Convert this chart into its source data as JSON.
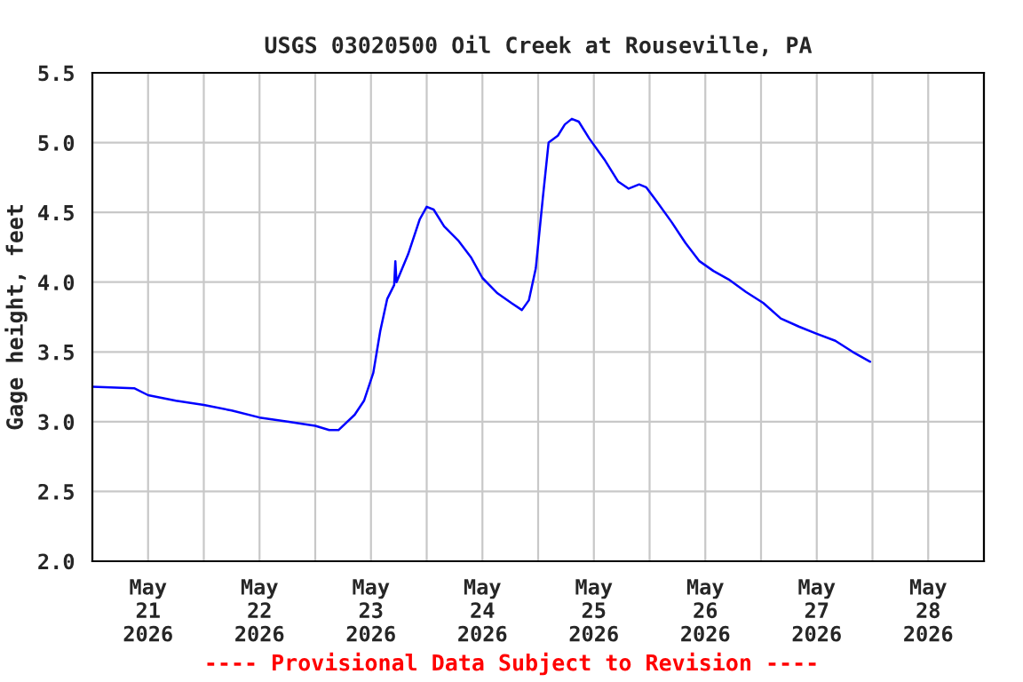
{
  "chart_data": {
    "type": "line",
    "title": "USGS 03020500 Oil Creek at Rouseville, PA",
    "ylabel": "Gage height, feet",
    "series": [
      {
        "color": "#0000ff",
        "x": [
          "2026-05-21T00:00",
          "2026-05-21T09:00",
          "2026-05-21T12:00",
          "2026-05-21T18:00",
          "2026-05-22T00:00",
          "2026-05-22T06:00",
          "2026-05-22T12:00",
          "2026-05-22T18:00",
          "2026-05-23T00:00",
          "2026-05-23T03:00",
          "2026-05-23T05:00",
          "2026-05-23T08:30",
          "2026-05-23T10:30",
          "2026-05-23T12:30",
          "2026-05-23T14:00",
          "2026-05-23T15:30",
          "2026-05-23T17:00",
          "2026-05-23T17:15",
          "2026-05-23T17:30",
          "2026-05-23T20:00",
          "2026-05-23T22:30",
          "2026-05-24T00:00",
          "2026-05-24T01:30",
          "2026-05-24T03:45",
          "2026-05-24T06:45",
          "2026-05-24T09:30",
          "2026-05-24T12:00",
          "2026-05-24T15:15",
          "2026-05-24T18:15",
          "2026-05-24T20:30",
          "2026-05-24T22:00",
          "2026-05-24T23:30",
          "2026-05-25T01:00",
          "2026-05-25T02:15",
          "2026-05-25T04:15",
          "2026-05-25T05:45",
          "2026-05-25T07:15",
          "2026-05-25T08:45",
          "2026-05-25T11:00",
          "2026-05-25T14:15",
          "2026-05-25T17:15",
          "2026-05-25T19:30",
          "2026-05-25T21:45",
          "2026-05-25T23:15",
          "2026-05-26T01:30",
          "2026-05-26T04:45",
          "2026-05-26T07:45",
          "2026-05-26T10:45",
          "2026-05-26T13:45",
          "2026-05-26T17:00",
          "2026-05-26T20:45",
          "2026-05-27T00:30",
          "2026-05-27T04:15",
          "2026-05-27T08:15",
          "2026-05-27T12:00",
          "2026-05-27T16:00",
          "2026-05-27T19:45",
          "2026-05-27T23:30"
        ],
        "values": [
          3.25,
          3.24,
          3.19,
          3.15,
          3.12,
          3.08,
          3.03,
          3.0,
          2.97,
          2.94,
          2.94,
          3.05,
          3.15,
          3.35,
          3.65,
          3.88,
          3.98,
          4.15,
          4.0,
          4.2,
          4.45,
          4.54,
          4.52,
          4.4,
          4.3,
          4.18,
          4.03,
          3.92,
          3.85,
          3.8,
          3.87,
          4.1,
          4.6,
          5.0,
          5.05,
          5.13,
          5.17,
          5.15,
          5.03,
          4.88,
          4.72,
          4.67,
          4.7,
          4.68,
          4.58,
          4.43,
          4.28,
          4.15,
          4.08,
          4.02,
          3.93,
          3.85,
          3.74,
          3.68,
          3.63,
          3.58,
          3.5,
          3.43
        ]
      }
    ],
    "xlim": [
      "2026-05-21T00:00",
      "2026-05-29T00:00"
    ],
    "xticks": [
      {
        "value": "2026-05-21T00:00",
        "label": null
      },
      {
        "value": "2026-05-21T12:00",
        "label": "May\n21\n2026"
      },
      {
        "value": "2026-05-22T00:00",
        "label": null
      },
      {
        "value": "2026-05-22T12:00",
        "label": "May\n22\n2026"
      },
      {
        "value": "2026-05-23T00:00",
        "label": null
      },
      {
        "value": "2026-05-23T12:00",
        "label": "May\n23\n2026"
      },
      {
        "value": "2026-05-24T00:00",
        "label": null
      },
      {
        "value": "2026-05-24T12:00",
        "label": "May\n24\n2026"
      },
      {
        "value": "2026-05-25T00:00",
        "label": null
      },
      {
        "value": "2026-05-25T12:00",
        "label": "May\n25\n2026"
      },
      {
        "value": "2026-05-26T00:00",
        "label": null
      },
      {
        "value": "2026-05-26T12:00",
        "label": "May\n26\n2026"
      },
      {
        "value": "2026-05-27T00:00",
        "label": null
      },
      {
        "value": "2026-05-27T12:00",
        "label": "May\n27\n2026"
      },
      {
        "value": "2026-05-28T00:00",
        "label": null
      },
      {
        "value": "2026-05-28T12:00",
        "label": "May\n28\n2026"
      },
      {
        "value": "2026-05-29T00:00",
        "label": null
      }
    ],
    "ylim": [
      2.0,
      5.5
    ],
    "yticks": [
      {
        "value": 2,
        "label": "2.0"
      },
      {
        "value": 2.5,
        "label": "2.5"
      },
      {
        "value": 3,
        "label": "3.0"
      },
      {
        "value": 3.5,
        "label": "3.5"
      },
      {
        "value": 4,
        "label": "4.0"
      },
      {
        "value": 4.5,
        "label": "4.5"
      },
      {
        "value": 5,
        "label": "5.0"
      },
      {
        "value": 5.5,
        "label": "5.5"
      }
    ],
    "grid": true,
    "legend": false,
    "marker": "none",
    "line_style": "solid",
    "annotations": [
      "---- Provisional Data Subject to Revision ----"
    ]
  }
}
